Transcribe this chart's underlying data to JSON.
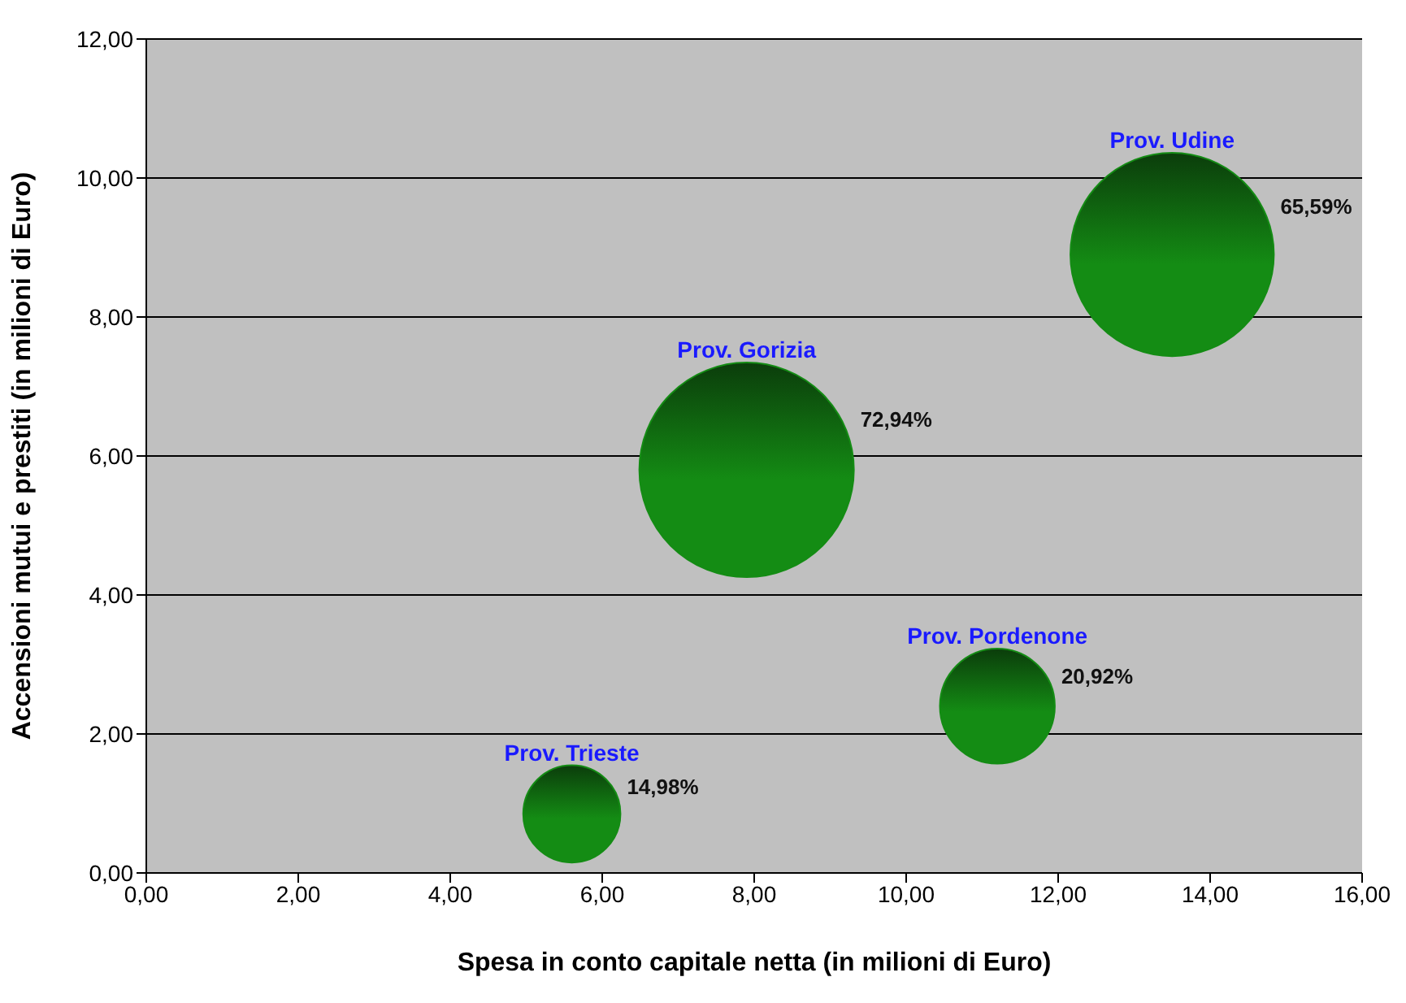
{
  "chart_data": {
    "type": "bubble",
    "xlabel": "Spesa in conto capitale netta (in milioni di Euro)",
    "ylabel": "Accensioni mutui e prestiti  (in milioni di Euro)",
    "xlim": [
      0,
      16
    ],
    "xticks": [
      {
        "value": 0,
        "label": "0,00"
      },
      {
        "value": 2,
        "label": "2,00"
      },
      {
        "value": 4,
        "label": "4,00"
      },
      {
        "value": 6,
        "label": "6,00"
      },
      {
        "value": 8,
        "label": "8,00"
      },
      {
        "value": 10,
        "label": "10,00"
      },
      {
        "value": 12,
        "label": "12,00"
      },
      {
        "value": 14,
        "label": "14,00"
      },
      {
        "value": 16,
        "label": "16,00"
      }
    ],
    "ylim": [
      0,
      12
    ],
    "yticks": [
      {
        "value": 0,
        "label": "0,00"
      },
      {
        "value": 2,
        "label": "2,00"
      },
      {
        "value": 4,
        "label": "4,00"
      },
      {
        "value": 6,
        "label": "6,00"
      },
      {
        "value": 8,
        "label": "8,00"
      },
      {
        "value": 10,
        "label": "10,00"
      },
      {
        "value": 12,
        "label": "12,00"
      }
    ],
    "grid": "y",
    "series": [
      {
        "name": "Prov. Udine",
        "color": "#148c14",
        "x": [
          13.5
        ],
        "values": [
          8.9
        ],
        "sizes": [
          65.59
        ],
        "value_labels": [
          "65,59%"
        ]
      },
      {
        "name": "Prov. Gorizia",
        "color": "#148c14",
        "x": [
          7.9
        ],
        "values": [
          5.8
        ],
        "sizes": [
          72.94
        ],
        "value_labels": [
          "72,94%"
        ]
      },
      {
        "name": "Prov. Pordenone",
        "color": "#148c14",
        "x": [
          11.2
        ],
        "values": [
          2.4
        ],
        "sizes": [
          20.92
        ],
        "value_labels": [
          "20,92%"
        ]
      },
      {
        "name": "Prov. Trieste",
        "color": "#148c14",
        "x": [
          5.6
        ],
        "values": [
          0.85
        ],
        "sizes": [
          14.98
        ],
        "value_labels": [
          "14,98%"
        ]
      }
    ]
  }
}
